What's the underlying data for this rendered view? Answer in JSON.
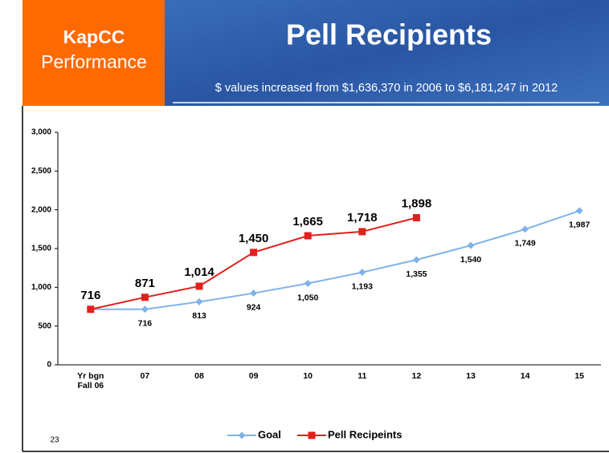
{
  "slide": {
    "brand": "KapCC",
    "brand_sub": "Performance",
    "number": "23"
  },
  "chart_data": {
    "type": "line",
    "title": "Pell Recipients",
    "subtitle": "$ values increased from $1,636,370 in 2006 to $6,181,247 in 2012",
    "categories": [
      "Yr bgn\nFall 06",
      "07",
      "08",
      "09",
      "10",
      "11",
      "12",
      "13",
      "14",
      "15"
    ],
    "series": [
      {
        "name": "Goal",
        "color": "#7fb3e8",
        "marker": "diamond",
        "values": [
          716,
          716,
          813,
          924,
          1050,
          1193,
          1355,
          1540,
          1749,
          1987
        ],
        "value_labels": [
          null,
          "716",
          "813",
          "924",
          "1,050",
          "1,193",
          "1,355",
          "1,540",
          "1,749",
          "1,987"
        ]
      },
      {
        "name": "Pell Recipeints",
        "color": "#e0201b",
        "marker": "square",
        "values": [
          716,
          871,
          1014,
          1450,
          1665,
          1718,
          1898,
          null,
          null,
          null
        ],
        "value_labels": [
          "716",
          "871",
          "1,014",
          "1,450",
          "1,665",
          "1,718",
          "1,898",
          null,
          null,
          null
        ]
      }
    ],
    "ylim": [
      0,
      3000
    ],
    "yticks": [
      0,
      500,
      {
        "value": 1000,
        "label": "1,000"
      },
      {
        "value": 1500,
        "label": "1,500"
      },
      {
        "value": 2000,
        "label": "2,000"
      },
      {
        "value": 2500,
        "label": "2,500"
      },
      {
        "value": 3000,
        "label": "3,000"
      }
    ],
    "grid": false,
    "legend": "bottom"
  }
}
